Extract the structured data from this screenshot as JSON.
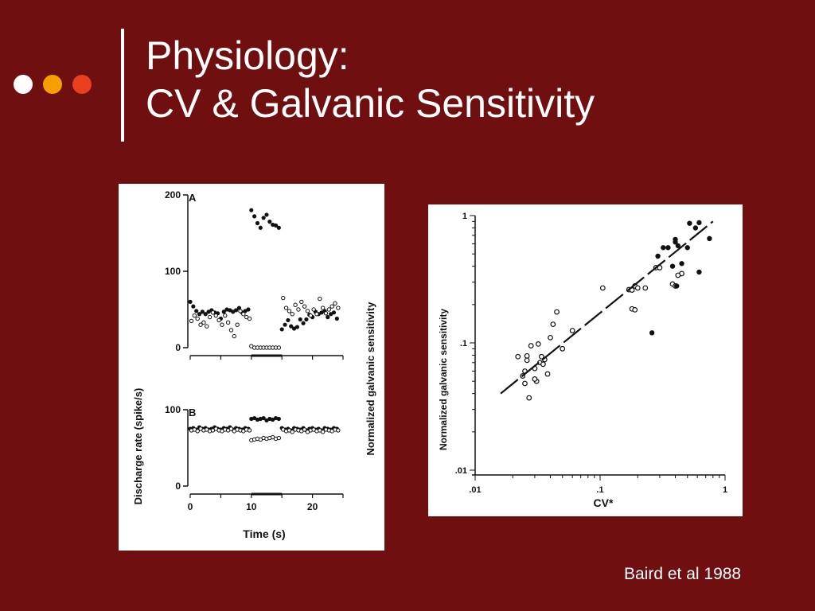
{
  "slide": {
    "title_line1": "Physiology:",
    "title_line2": "CV & Galvanic Sensitivity",
    "citation": "Baird et al 1988",
    "dot_colors": [
      "#ffffff",
      "#f5a000",
      "#e8401e"
    ],
    "background": "#6f0f10"
  },
  "chart_data": [
    {
      "type": "scatter",
      "panel": "A",
      "ylabel": "Discharge rate (spike/s)",
      "right_label": "Normalized galvanic sensitivity",
      "xlabel": "",
      "xlim": [
        0,
        25
      ],
      "ylim": [
        0,
        200
      ],
      "yticks": [
        "0",
        "100",
        "200"
      ],
      "series": [
        {
          "marker": "filled",
          "x": [
            0,
            0.5,
            1,
            1.5,
            2,
            2.5,
            3,
            3.5,
            4,
            4.5,
            5,
            5.5,
            6,
            6.5,
            7,
            7.5,
            8,
            8.5,
            9,
            9.5,
            10,
            10.5,
            11,
            11.5,
            12,
            12.5,
            13,
            13.5,
            14,
            14.5,
            15,
            15.5,
            16,
            16.5,
            17,
            17.5,
            18,
            18.5,
            19,
            19.5,
            20,
            20.5,
            21,
            21.5,
            22,
            22.5,
            23,
            23.5,
            24
          ],
          "y": [
            60,
            54,
            48,
            44,
            47,
            44,
            47,
            49,
            46,
            45,
            38,
            47,
            50,
            49,
            47,
            49,
            52,
            46,
            48,
            50,
            180,
            172,
            163,
            157,
            170,
            174,
            165,
            161,
            160,
            157,
            24,
            30,
            36,
            28,
            25,
            27,
            37,
            32,
            37,
            43,
            40,
            47,
            44,
            46,
            48,
            40,
            44,
            46,
            38
          ]
        },
        {
          "marker": "open",
          "x": [
            0.2,
            0.7,
            1.2,
            1.7,
            2.2,
            2.7,
            3.2,
            3.7,
            4.2,
            4.7,
            5.2,
            5.7,
            6.2,
            6.7,
            7.2,
            7.7,
            8.2,
            8.7,
            9.2,
            9.7,
            10,
            10.5,
            11,
            11.5,
            12,
            12.5,
            13,
            13.5,
            14,
            14.5,
            15.2,
            15.7,
            16.2,
            16.7,
            17.2,
            17.7,
            18.2,
            18.7,
            19.2,
            19.7,
            20.2,
            20.7,
            21.2,
            21.7,
            22.2,
            22.7,
            23.2,
            23.7,
            24.2
          ],
          "y": [
            35,
            42,
            38,
            30,
            33,
            28,
            40,
            46,
            42,
            36,
            30,
            42,
            33,
            23,
            15,
            30,
            48,
            44,
            40,
            38,
            2,
            0,
            0,
            0,
            0,
            0,
            0,
            0,
            0,
            0,
            65,
            52,
            48,
            44,
            56,
            50,
            60,
            54,
            48,
            42,
            50,
            44,
            64,
            52,
            45,
            50,
            54,
            58,
            52
          ]
        }
      ]
    },
    {
      "type": "scatter",
      "panel": "B",
      "xlabel": "Time (s)",
      "ylabel": "",
      "xlim": [
        0,
        25
      ],
      "ylim": [
        0,
        100
      ],
      "xticks": [
        "0",
        "10",
        "20"
      ],
      "yticks": [
        "0",
        "100"
      ],
      "series": [
        {
          "marker": "filled",
          "x": [
            0,
            0.5,
            1,
            1.5,
            2,
            2.5,
            3,
            3.5,
            4,
            4.5,
            5,
            5.5,
            6,
            6.5,
            7,
            7.5,
            8,
            8.5,
            9,
            9.5,
            10,
            10.5,
            11,
            11.5,
            12,
            12.5,
            13,
            13.5,
            14,
            14.5,
            15,
            15.5,
            16,
            16.5,
            17,
            17.5,
            18,
            18.5,
            19,
            19.5,
            20,
            20.5,
            21,
            21.5,
            22,
            22.5,
            23,
            23.5,
            24
          ],
          "y": [
            75,
            76,
            74,
            77,
            75,
            76,
            74,
            75,
            77,
            75,
            74,
            76,
            75,
            77,
            74,
            76,
            75,
            74,
            76,
            75,
            88,
            89,
            87,
            88,
            89,
            86,
            88,
            87,
            89,
            88,
            76,
            74,
            75,
            73,
            76,
            75,
            74,
            76,
            73,
            75,
            76,
            74,
            75,
            73,
            76,
            75,
            74,
            76,
            75
          ]
        },
        {
          "marker": "open",
          "x": [
            0.2,
            0.7,
            1.2,
            1.7,
            2.2,
            2.7,
            3.2,
            3.7,
            4.2,
            4.7,
            5.2,
            5.7,
            6.2,
            6.7,
            7.2,
            7.7,
            8.2,
            8.7,
            9.2,
            9.7,
            10,
            10.5,
            11,
            11.5,
            12,
            12.5,
            13,
            13.5,
            14,
            14.5,
            15.2,
            15.7,
            16.2,
            16.7,
            17.2,
            17.7,
            18.2,
            18.7,
            19.2,
            19.7,
            20.2,
            20.7,
            21.2,
            21.7,
            22.2,
            22.7,
            23.2,
            23.7,
            24.2
          ],
          "y": [
            73,
            74,
            72,
            75,
            73,
            74,
            72,
            73,
            75,
            73,
            72,
            74,
            73,
            75,
            72,
            74,
            73,
            72,
            74,
            73,
            60,
            61,
            62,
            61,
            63,
            62,
            63,
            64,
            62,
            63,
            74,
            72,
            73,
            71,
            74,
            73,
            72,
            74,
            71,
            73,
            74,
            72,
            73,
            71,
            74,
            73,
            72,
            74,
            73
          ]
        }
      ]
    },
    {
      "type": "scatter",
      "xscale": "log",
      "yscale": "log",
      "xlabel": "CV*",
      "ylabel": "Normalized galvanic sensitivity",
      "xlim": [
        0.01,
        1
      ],
      "ylim": [
        0.01,
        1
      ],
      "xticks": [
        ".01",
        ".1",
        "1"
      ],
      "yticks": [
        ".01",
        ".1",
        "1"
      ],
      "series": [
        {
          "marker": "open",
          "x": [
            0.022,
            0.024,
            0.025,
            0.026,
            0.027,
            0.028,
            0.03,
            0.031,
            0.032,
            0.033,
            0.034,
            0.036,
            0.038,
            0.04,
            0.045,
            0.05,
            0.06,
            0.03,
            0.035,
            0.042,
            0.026,
            0.025,
            0.105,
            0.17,
            0.18,
            0.19,
            0.2,
            0.23,
            0.28,
            0.3,
            0.38,
            0.4,
            0.45,
            0.18,
            0.19,
            0.42
          ],
          "y": [
            0.078,
            0.055,
            0.048,
            0.079,
            0.037,
            0.095,
            0.063,
            0.05,
            0.098,
            0.07,
            0.078,
            0.074,
            0.057,
            0.11,
            0.175,
            0.09,
            0.125,
            0.052,
            0.068,
            0.14,
            0.073,
            0.06,
            0.27,
            0.262,
            0.26,
            0.28,
            0.27,
            0.27,
            0.39,
            0.39,
            0.29,
            0.28,
            0.35,
            0.185,
            0.182,
            0.34
          ]
        },
        {
          "marker": "filled",
          "x": [
            0.26,
            0.29,
            0.32,
            0.35,
            0.38,
            0.4,
            0.42,
            0.45,
            0.5,
            0.52,
            0.58,
            0.62,
            0.75,
            0.4,
            0.62,
            0.41
          ],
          "y": [
            0.12,
            0.48,
            0.56,
            0.56,
            0.4,
            0.62,
            0.58,
            0.42,
            0.56,
            0.87,
            0.8,
            0.88,
            0.66,
            0.65,
            0.36,
            0.28
          ]
        },
        {
          "marker": "line",
          "x": [
            0.016,
            0.8
          ],
          "y": [
            0.04,
            0.9
          ]
        }
      ]
    }
  ]
}
